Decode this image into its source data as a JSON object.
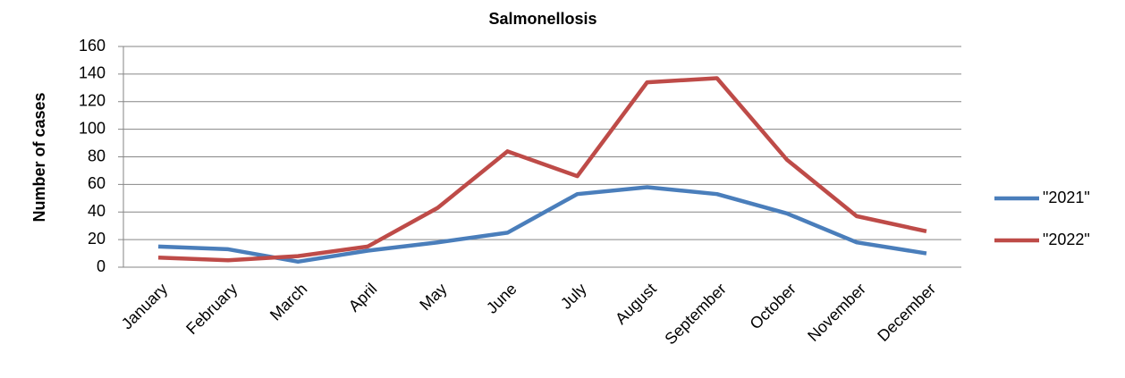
{
  "chart_data": {
    "type": "line",
    "title": "Salmonellosis",
    "y_label": "Number of cases",
    "categories": [
      "January",
      "February",
      "March",
      "April",
      "May",
      "June",
      "July",
      "August",
      "September",
      "October",
      "November",
      "December"
    ],
    "series": [
      {
        "name": "\"2021\"",
        "color": "#4a7ebb",
        "values": [
          15,
          13,
          4,
          12,
          18,
          25,
          53,
          58,
          53,
          39,
          18,
          10
        ]
      },
      {
        "name": "\"2022\"",
        "color": "#be4b48",
        "values": [
          7,
          5,
          8,
          15,
          43,
          84,
          66,
          134,
          137,
          78,
          37,
          26
        ]
      }
    ],
    "ylim": [
      0,
      160
    ],
    "yticks": [
      0,
      20,
      40,
      60,
      80,
      100,
      120,
      140,
      160
    ],
    "grid": true,
    "legend": "right"
  }
}
